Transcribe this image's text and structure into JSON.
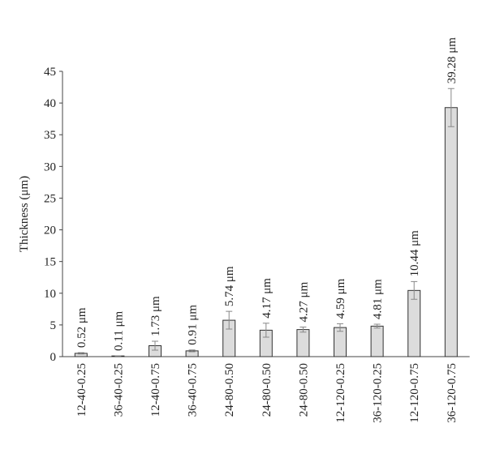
{
  "chart_data": {
    "type": "bar",
    "y_label": "Thickness (μm)",
    "categories": [
      "12-40-0.25",
      "36-40-0.25",
      "12-40-0.75",
      "36-40-0.75",
      "24-80-0.50",
      "24-80-0.50",
      "24-80-0.50",
      "12-120-0.25",
      "36-120-0.25",
      "12-120-0.75",
      "36-120-0.75"
    ],
    "values": [
      0.52,
      0.11,
      1.73,
      0.91,
      5.74,
      4.17,
      4.27,
      4.59,
      4.81,
      10.44,
      39.28
    ],
    "value_labels": [
      "0.52 μm",
      "0.11 μm",
      "1.73 μm",
      "0.91 μm",
      "5.74 μm",
      "4.17 μm",
      "4.27 μm",
      "4.59 μm",
      "4.81 μm",
      "10.44 μm",
      "39.28 μm"
    ],
    "errors": [
      0.1,
      0.02,
      0.7,
      0.15,
      1.4,
      1.1,
      0.4,
      0.6,
      0.3,
      1.4,
      3.0
    ],
    "color": "#dcdcdc",
    "ylim": [
      0,
      45
    ],
    "yticks": [
      0,
      5,
      10,
      15,
      20,
      25,
      30,
      35,
      40,
      45
    ],
    "grid": false
  }
}
